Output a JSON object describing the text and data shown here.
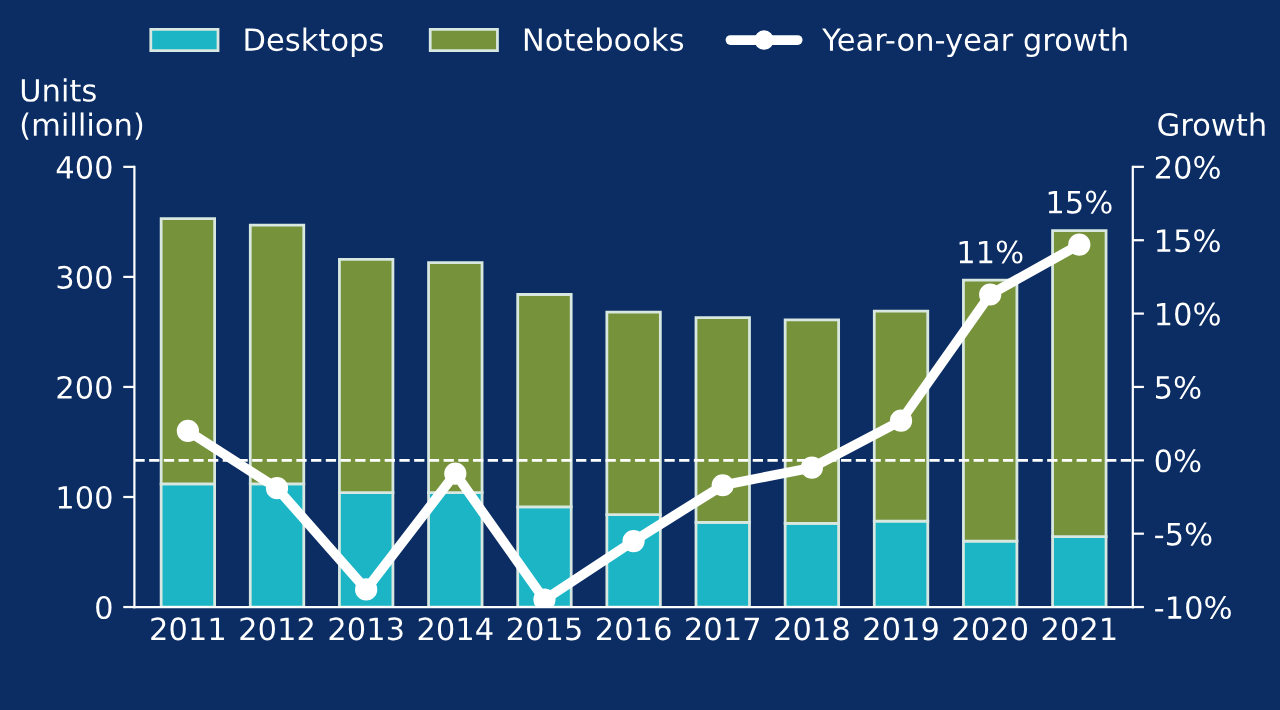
{
  "chart_data": {
    "type": "bar",
    "stacked": true,
    "ylabel": "Units\n(million)",
    "y2label": "Growth",
    "categories": [
      "2011",
      "2012",
      "2013",
      "2014",
      "2015",
      "2016",
      "2017",
      "2018",
      "2019",
      "2020",
      "2021"
    ],
    "series": [
      {
        "name": "Desktops",
        "color": "#1bb5c6",
        "values": [
          112,
          112,
          104,
          104,
          91,
          84,
          77,
          76,
          78,
          60,
          64
        ]
      },
      {
        "name": "Notebooks",
        "color": "#76933c",
        "values": [
          241,
          235,
          212,
          209,
          193,
          184,
          186,
          185,
          191,
          237,
          278
        ]
      },
      {
        "name": "Year-on-year growth",
        "type": "line",
        "axis": "y2",
        "color": "#ffffff",
        "marker": "circle",
        "line_style": "solid",
        "values": [
          2.0,
          -1.9,
          -8.8,
          -0.9,
          -9.5,
          -5.5,
          -1.7,
          -0.5,
          2.7,
          11.3,
          14.7
        ],
        "value_labels": [
          null,
          null,
          null,
          null,
          null,
          null,
          null,
          null,
          null,
          "11%",
          "15%"
        ]
      }
    ],
    "ylim": [
      0,
      400
    ],
    "yticks": [
      0,
      100,
      200,
      300,
      400
    ],
    "y2lim": [
      -10,
      20
    ],
    "y2ticks": [
      {
        "value": -10,
        "label": "-10%"
      },
      {
        "value": -5,
        "label": "-5%"
      },
      {
        "value": 0,
        "label": "0%"
      },
      {
        "value": 5,
        "label": "5%"
      },
      {
        "value": 10,
        "label": "10%"
      },
      {
        "value": 15,
        "label": "15%"
      },
      {
        "value": 20,
        "label": "20%"
      }
    ],
    "ref_lines": [
      {
        "axis": "y2",
        "value": 0,
        "color": "#ffffff",
        "line_style": "dashed"
      }
    ],
    "grid": false,
    "legend": "top"
  }
}
